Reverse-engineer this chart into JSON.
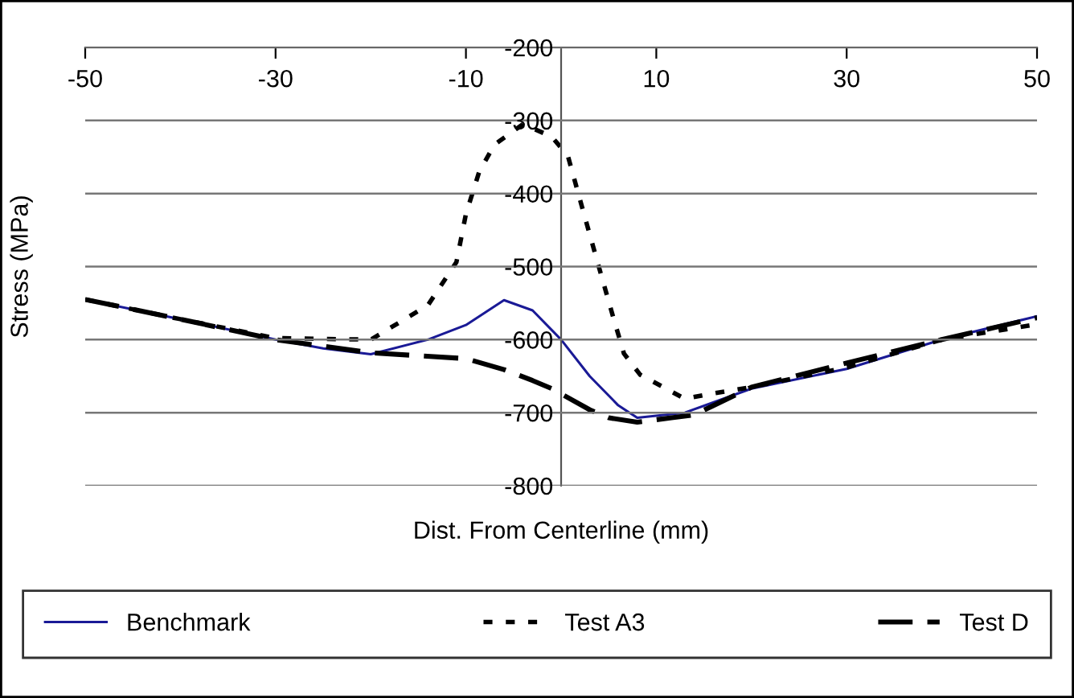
{
  "chart_data": {
    "type": "line",
    "xlabel": "Dist. From Centerline (mm)",
    "ylabel": "Stress (MPa)",
    "xlim": [
      -50,
      50
    ],
    "xticks": [
      -50,
      -30,
      -10,
      10,
      30,
      50
    ],
    "ylim": [
      -800,
      -200
    ],
    "yticks": [
      -200,
      -300,
      -400,
      -500,
      -600,
      -700,
      -800
    ],
    "grid": "y",
    "legend": "bottom",
    "marker": "none",
    "series": [
      {
        "name": "Benchmark",
        "color": "#1a1a96",
        "line_style": "solid",
        "x": [
          -50,
          -40,
          -30,
          -25,
          -20,
          -14,
          -10,
          -6,
          -3,
          0,
          3,
          6,
          8,
          13,
          20,
          30,
          40,
          50
        ],
        "values": [
          -545,
          -572,
          -600,
          -612,
          -620,
          -600,
          -580,
          -546,
          -560,
          -600,
          -650,
          -690,
          -707,
          -700,
          -667,
          -640,
          -600,
          -568
        ]
      },
      {
        "name": "Test A3",
        "color": "#000000",
        "line_style": "dotted",
        "x": [
          -50,
          -40,
          -30,
          -20,
          -14,
          -11,
          -10,
          -8.6,
          -7,
          -4,
          -1,
          0.7,
          2.4,
          4,
          5.6,
          6.6,
          8.3,
          13,
          15.4,
          20,
          30,
          40,
          50
        ],
        "values": [
          -545,
          -572,
          -598,
          -600,
          -553,
          -494,
          -428,
          -370,
          -333,
          -305,
          -322,
          -348,
          -428,
          -502,
          -575,
          -619,
          -648,
          -681,
          -675,
          -665,
          -638,
          -600,
          -579
        ]
      },
      {
        "name": "Test D",
        "color": "#000000",
        "line_style": "dashed",
        "x": [
          -50,
          -40,
          -30,
          -20,
          -10,
          -6,
          -3,
          -1,
          3,
          5,
          8,
          11.6,
          14,
          20,
          30,
          40,
          50
        ],
        "values": [
          -545,
          -572,
          -600,
          -618,
          -626,
          -641,
          -656,
          -667,
          -696,
          -707,
          -713,
          -707,
          -703,
          -665,
          -632,
          -600,
          -570
        ]
      }
    ]
  }
}
